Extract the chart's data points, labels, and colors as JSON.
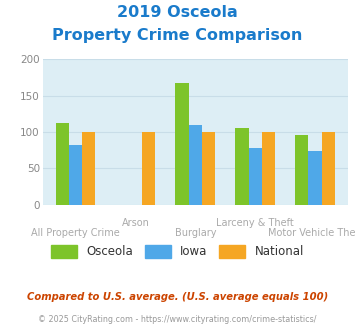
{
  "title_line1": "2019 Osceola",
  "title_line2": "Property Crime Comparison",
  "title_color": "#1a7bcb",
  "categories": [
    "All Property Crime",
    "Arson",
    "Burglary",
    "Larceny & Theft",
    "Motor Vehicle Theft"
  ],
  "osceola": [
    113,
    0,
    168,
    105,
    96
  ],
  "iowa": [
    82,
    0,
    109,
    78,
    74
  ],
  "national": [
    100,
    100,
    100,
    100,
    100
  ],
  "color_osceola": "#7dc42a",
  "color_iowa": "#4fa8e8",
  "color_national": "#f5a623",
  "ylim": [
    0,
    200
  ],
  "yticks": [
    0,
    50,
    100,
    150,
    200
  ],
  "plot_bg": "#ddeef5",
  "bar_width": 0.22,
  "footnote1": "Compared to U.S. average. (U.S. average equals 100)",
  "footnote2": "© 2025 CityRating.com - https://www.cityrating.com/crime-statistics/",
  "footnote1_color": "#cc4400",
  "footnote2_color": "#999999",
  "legend_labels": [
    "Osceola",
    "Iowa",
    "National"
  ],
  "x_label_color": "#aaaaaa",
  "grid_color": "#c8dde8"
}
